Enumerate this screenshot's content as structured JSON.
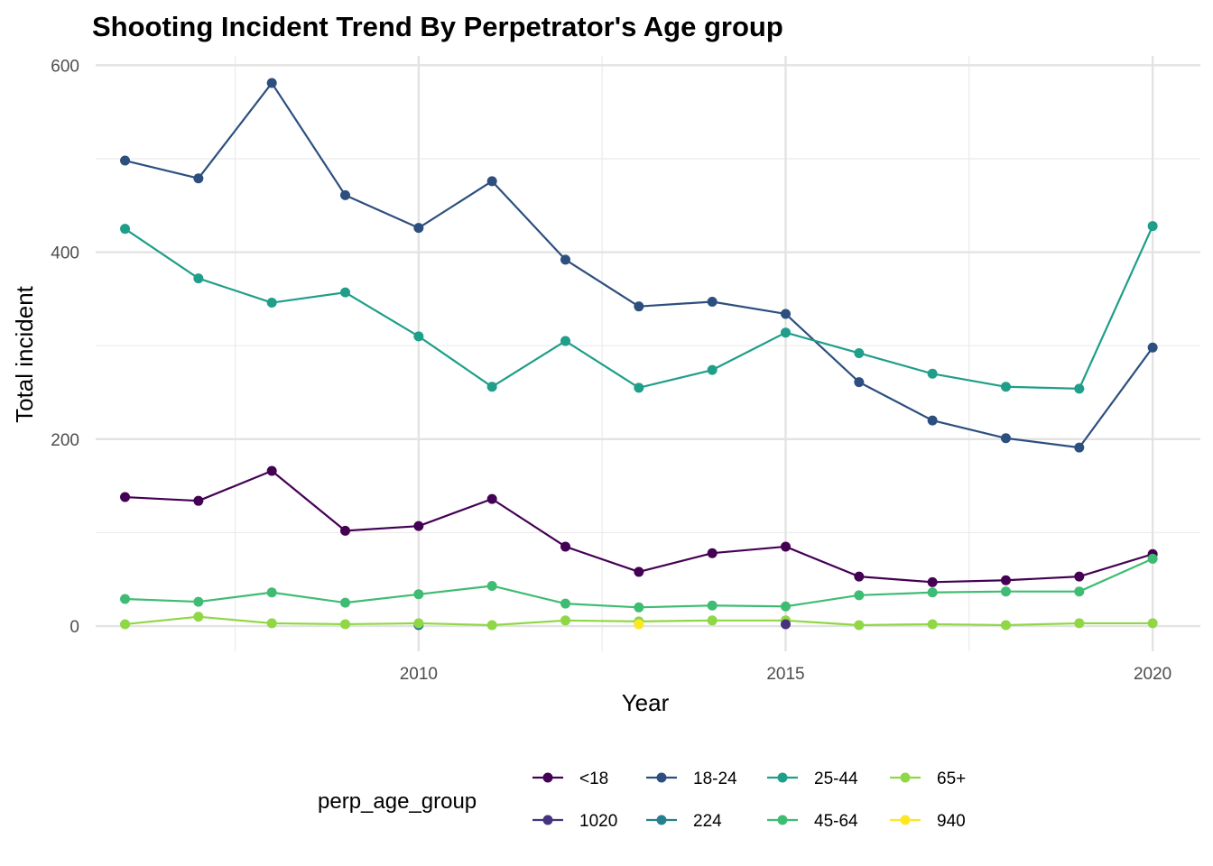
{
  "chart_data": {
    "type": "line",
    "title": "Shooting Incident Trend By Perpetrator's Age group",
    "xlabel": "Year",
    "ylabel": "Total incident",
    "xlim": [
      2005.6,
      2020.65
    ],
    "ylim": [
      -27,
      610
    ],
    "x_ticks": [
      2010,
      2015,
      2020
    ],
    "y_ticks": [
      0,
      200,
      400,
      600
    ],
    "grid": true,
    "legend_title": "perp_age_group",
    "legend_position": "bottom",
    "series": [
      {
        "name": "<18",
        "color": "#440154",
        "x": [
          2006,
          2007,
          2008,
          2009,
          2010,
          2011,
          2012,
          2013,
          2014,
          2015,
          2016,
          2017,
          2018,
          2019,
          2020
        ],
        "values": [
          138,
          134,
          166,
          102,
          107,
          136,
          85,
          58,
          78,
          85,
          53,
          47,
          49,
          53,
          77
        ]
      },
      {
        "name": "1020",
        "color": "#46337E",
        "x": [],
        "values": []
      },
      {
        "name": "18-24",
        "color": "#2D4F7F",
        "x": [
          2006,
          2007,
          2008,
          2009,
          2010,
          2011,
          2012,
          2013,
          2014,
          2015,
          2016,
          2017,
          2018,
          2019,
          2020
        ],
        "values": [
          498,
          479,
          581,
          461,
          426,
          476,
          392,
          342,
          347,
          334,
          261,
          220,
          201,
          191,
          298
        ]
      },
      {
        "name": "224",
        "color": "#277F8E",
        "x": [
          2010
        ],
        "values": [
          1
        ]
      },
      {
        "name": "25-44",
        "color": "#1F9E89",
        "x": [
          2006,
          2007,
          2008,
          2009,
          2010,
          2011,
          2012,
          2013,
          2014,
          2015,
          2016,
          2017,
          2018,
          2019,
          2020
        ],
        "values": [
          425,
          372,
          346,
          357,
          310,
          256,
          305,
          255,
          274,
          314,
          292,
          270,
          256,
          254,
          428
        ]
      },
      {
        "name": "45-64",
        "color": "#3FBC73",
        "x": [
          2006,
          2007,
          2008,
          2009,
          2010,
          2011,
          2012,
          2013,
          2014,
          2015,
          2016,
          2017,
          2018,
          2019,
          2020
        ],
        "values": [
          29,
          26,
          36,
          25,
          34,
          43,
          24,
          20,
          22,
          21,
          33,
          36,
          37,
          37,
          72
        ]
      },
      {
        "name": "65+",
        "color": "#8FD744",
        "x": [
          2006,
          2007,
          2008,
          2009,
          2010,
          2011,
          2012,
          2013,
          2014,
          2015,
          2016,
          2017,
          2018,
          2019,
          2020
        ],
        "values": [
          2,
          10,
          3,
          2,
          3,
          1,
          6,
          5,
          6,
          6,
          1,
          2,
          1,
          3,
          3
        ]
      },
      {
        "name": "940",
        "color": "#FDE725",
        "x": [
          2013
        ],
        "values": [
          2
        ]
      },
      {
        "name": "1020",
        "color": "#46337E",
        "x": [
          2015
        ],
        "values": [
          2
        ],
        "legend": false
      }
    ]
  }
}
